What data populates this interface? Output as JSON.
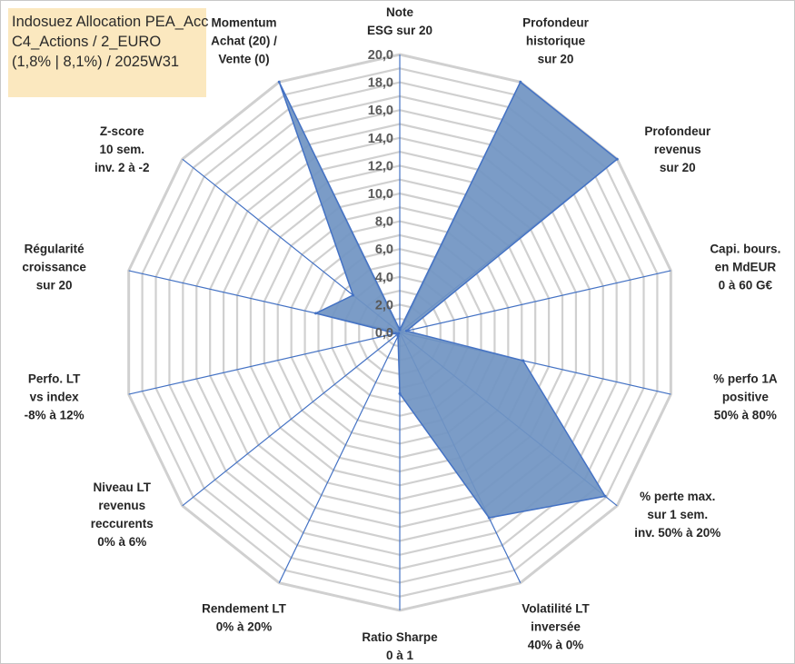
{
  "title_lines": [
    "Indosuez Allocation PEA_Acc",
    "C4_Actions / 2_EURO",
    "(1,8% | 8,1%) / 2025W31"
  ],
  "colors": {
    "fill": "#7094c2",
    "stroke": "#4472c4",
    "grid": "#d0d0d0",
    "spoke": "#4472c4",
    "title_bg": "#fbe8bf"
  },
  "chart_data": {
    "type": "radar",
    "rlim": [
      0,
      20
    ],
    "tick_step": 2,
    "tick_labels": [
      "0,0",
      "2,0",
      "4,0",
      "6,0",
      "8,0",
      "10,0",
      "12,0",
      "14,0",
      "16,0",
      "18,0",
      "20,0"
    ],
    "gridlines_every": 1,
    "categories": [
      [
        "Note",
        "ESG sur 20"
      ],
      [
        "Profondeur",
        "historique",
        "sur 20"
      ],
      [
        "Profondeur",
        "revenus",
        "sur 20"
      ],
      [
        "Capi. bours.",
        "en MdEUR",
        "0 à 60 G€"
      ],
      [
        "% perfo 1A",
        "positive",
        "50% à 80%"
      ],
      [
        "% perte max.",
        "sur 1 sem.",
        "inv. 50% à 20%"
      ],
      [
        "Volatilité LT",
        "inversée",
        "40% à 0%"
      ],
      [
        "Ratio Sharpe",
        "0 à 1"
      ],
      [
        "Rendement LT",
        "0% à 20%"
      ],
      [
        "Niveau LT",
        "revenus",
        "reccurents",
        "0% à 6%"
      ],
      [
        "Perfo. LT",
        "vs index",
        "-8% à 12%"
      ],
      [
        "Régularité",
        "croissance",
        "sur 20"
      ],
      [
        "Z-score",
        "10 sem.",
        "inv. 2 à -2"
      ],
      [
        "Momentum",
        "Achat (20) /",
        "Vente (0)"
      ]
    ],
    "series": [
      {
        "values": [
          0.2,
          20.0,
          20.0,
          0.5,
          9.1,
          18.9,
          14.8,
          4.4,
          0.3,
          0.1,
          0.3,
          6.2,
          4.3,
          20.0
        ]
      }
    ]
  }
}
